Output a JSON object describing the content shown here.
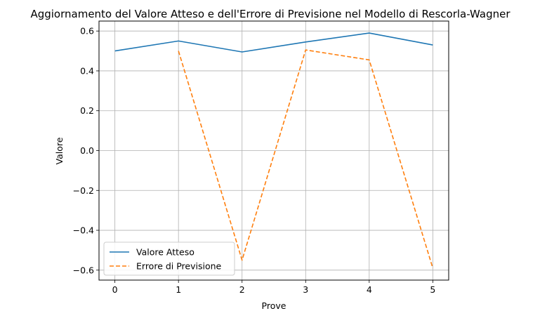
{
  "chart_data": {
    "type": "line",
    "title": "Aggiornamento del Valore Atteso e dell'Errore di Previsione nel Modello di Rescorla-Wagner",
    "xlabel": "Prove",
    "ylabel": "Valore",
    "xlim": [
      -0.25,
      5.25
    ],
    "ylim": [
      -0.65,
      0.65
    ],
    "xticks": [
      0,
      1,
      2,
      3,
      4,
      5
    ],
    "yticks": [
      -0.6,
      -0.4,
      -0.2,
      0.0,
      0.2,
      0.4,
      0.6
    ],
    "ytick_labels": [
      "−0.6",
      "−0.4",
      "−0.2",
      "0.0",
      "0.2",
      "0.4",
      "0.6"
    ],
    "grid": true,
    "legend_position": "lower-left",
    "series": [
      {
        "name": "Valore Atteso",
        "style": "solid",
        "color": "#1f77b4",
        "x": [
          0,
          1,
          2,
          3,
          4,
          5
        ],
        "values": [
          0.5,
          0.55,
          0.495,
          0.545,
          0.59,
          0.53
        ]
      },
      {
        "name": "Errore di Previsione",
        "style": "dashed",
        "color": "#ff7f0e",
        "x": [
          1,
          2,
          3,
          4,
          5
        ],
        "values": [
          0.5,
          -0.55,
          0.505,
          0.455,
          -0.59
        ]
      }
    ]
  }
}
